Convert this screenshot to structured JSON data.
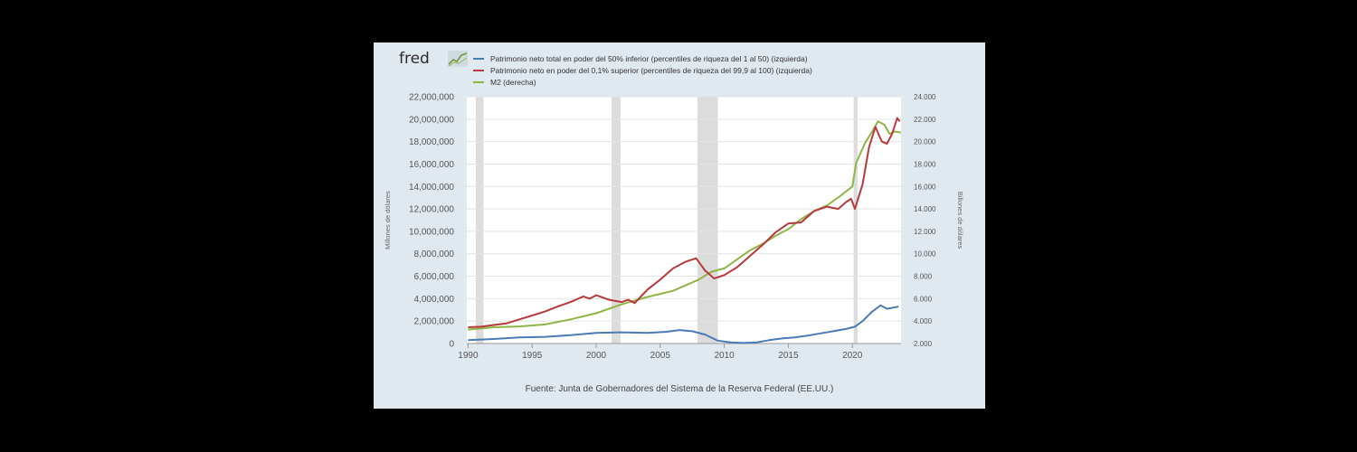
{
  "branding": {
    "logo_text": "fred"
  },
  "legend": {
    "items": [
      {
        "label": "Patrimonio neto total en poder del 50% inferior (percentiles de riqueza del 1 al 50) (izquierda)",
        "color": "#4a7ab8"
      },
      {
        "label": "Patrimonio neto en poder del 0,1% superior (percentiles de riqueza del 99,9 al 100) (izquierda)",
        "color": "#b8393b"
      },
      {
        "label": "M2 (derecha)",
        "color": "#8fb545"
      }
    ]
  },
  "source": "Fuente: Junta de Gobernadores del Sistema de la Reserva Federal (EE.UU.)",
  "chart_data": {
    "type": "line",
    "title": "",
    "xlabel": "",
    "ylabel_left": "Millones de dólares",
    "ylabel_right": "Billones de dólares",
    "xlim": [
      1989.9,
      2023.8
    ],
    "ylim_left": [
      0,
      22000000
    ],
    "ylim_right": [
      2000,
      24000
    ],
    "x_ticks": [
      "1990",
      "1995",
      "2000",
      "2005",
      "2010",
      "2015",
      "2020"
    ],
    "y_left_ticks": [
      "0",
      "2,000,000",
      "4,000,000",
      "6,000,000",
      "8,000,000",
      "10,000,000",
      "12,000,000",
      "14,000,000",
      "16,000,000",
      "18,000,000",
      "20,000,000",
      "22,000,000"
    ],
    "y_right_ticks": [
      "2.000",
      "4.000",
      "6.000",
      "8.000",
      "10.000",
      "12.000",
      "14.000",
      "16.000",
      "18.000",
      "20.000",
      "22.000",
      "24.000"
    ],
    "recessions": [
      [
        1990.6,
        1991.2
      ],
      [
        2001.2,
        2001.9
      ],
      [
        2007.9,
        2009.5
      ],
      [
        2020.1,
        2020.4
      ]
    ],
    "grid": true,
    "series": [
      {
        "name": "Patrimonio neto total en poder del 50% inferior (percentiles de riqueza del 1 al 50) (izquierda)",
        "axis": "left",
        "color": "#4a7ab8",
        "x": [
          1990,
          1992,
          1994,
          1996,
          1998,
          2000,
          2002,
          2004,
          2005.5,
          2006.5,
          2007.5,
          2008.5,
          2009.5,
          2010.5,
          2011.5,
          2012.5,
          2013.5,
          2014.5,
          2015.5,
          2016.5,
          2017.5,
          2018.5,
          2019.5,
          2020.2,
          2020.8,
          2021.5,
          2022.2,
          2022.7,
          2023.2,
          2023.6
        ],
        "y": [
          300000,
          400000,
          550000,
          600000,
          750000,
          950000,
          1000000,
          950000,
          1050000,
          1200000,
          1100000,
          800000,
          250000,
          100000,
          50000,
          100000,
          300000,
          450000,
          550000,
          700000,
          900000,
          1100000,
          1300000,
          1500000,
          2000000,
          2800000,
          3400000,
          3100000,
          3200000,
          3300000
        ]
      },
      {
        "name": "Patrimonio neto en poder del 0,1% superior (percentiles de riqueza del 99,9 al 100) (izquierda)",
        "axis": "left",
        "color": "#b8393b",
        "x": [
          1990,
          1991,
          1992,
          1993,
          1994,
          1995,
          1996,
          1997,
          1998,
          1999,
          1999.5,
          2000,
          2000.5,
          2001,
          2002,
          2002.5,
          2003,
          2004,
          2005,
          2006,
          2007,
          2007.8,
          2008.5,
          2009.2,
          2010,
          2011,
          2012,
          2013,
          2014,
          2015,
          2016,
          2017,
          2018,
          2018.9,
          2019.5,
          2019.9,
          2020.2,
          2020.8,
          2021.3,
          2021.8,
          2022.3,
          2022.7,
          2023.1,
          2023.5,
          2023.7
        ],
        "y": [
          1450000,
          1500000,
          1650000,
          1800000,
          2150000,
          2500000,
          2850000,
          3300000,
          3700000,
          4200000,
          4000000,
          4300000,
          4100000,
          3900000,
          3700000,
          3900000,
          3600000,
          4800000,
          5700000,
          6700000,
          7300000,
          7600000,
          6500000,
          5800000,
          6100000,
          6800000,
          7800000,
          8800000,
          9900000,
          10700000,
          10800000,
          11800000,
          12200000,
          12000000,
          12600000,
          12900000,
          12000000,
          14200000,
          17500000,
          19300000,
          18000000,
          17800000,
          18700000,
          20100000,
          19800000
        ]
      },
      {
        "name": "M2 (derecha)",
        "axis": "right",
        "color": "#8fb545",
        "x": [
          1990,
          1992,
          1994,
          1996,
          1998,
          2000,
          2002,
          2004,
          2006,
          2008,
          2009,
          2010,
          2011,
          2012,
          2013,
          2014,
          2015,
          2016,
          2017,
          2018,
          2019,
          2020,
          2020.3,
          2021,
          2021.5,
          2022,
          2022.5,
          2022.9,
          2023.3,
          2023.8
        ],
        "y": [
          3250,
          3450,
          3520,
          3700,
          4150,
          4700,
          5500,
          6150,
          6700,
          7700,
          8400,
          8700,
          9500,
          10300,
          10900,
          11600,
          12200,
          13100,
          13800,
          14300,
          15100,
          16000,
          18100,
          19900,
          20800,
          21800,
          21500,
          20700,
          20900,
          20800
        ]
      }
    ]
  }
}
